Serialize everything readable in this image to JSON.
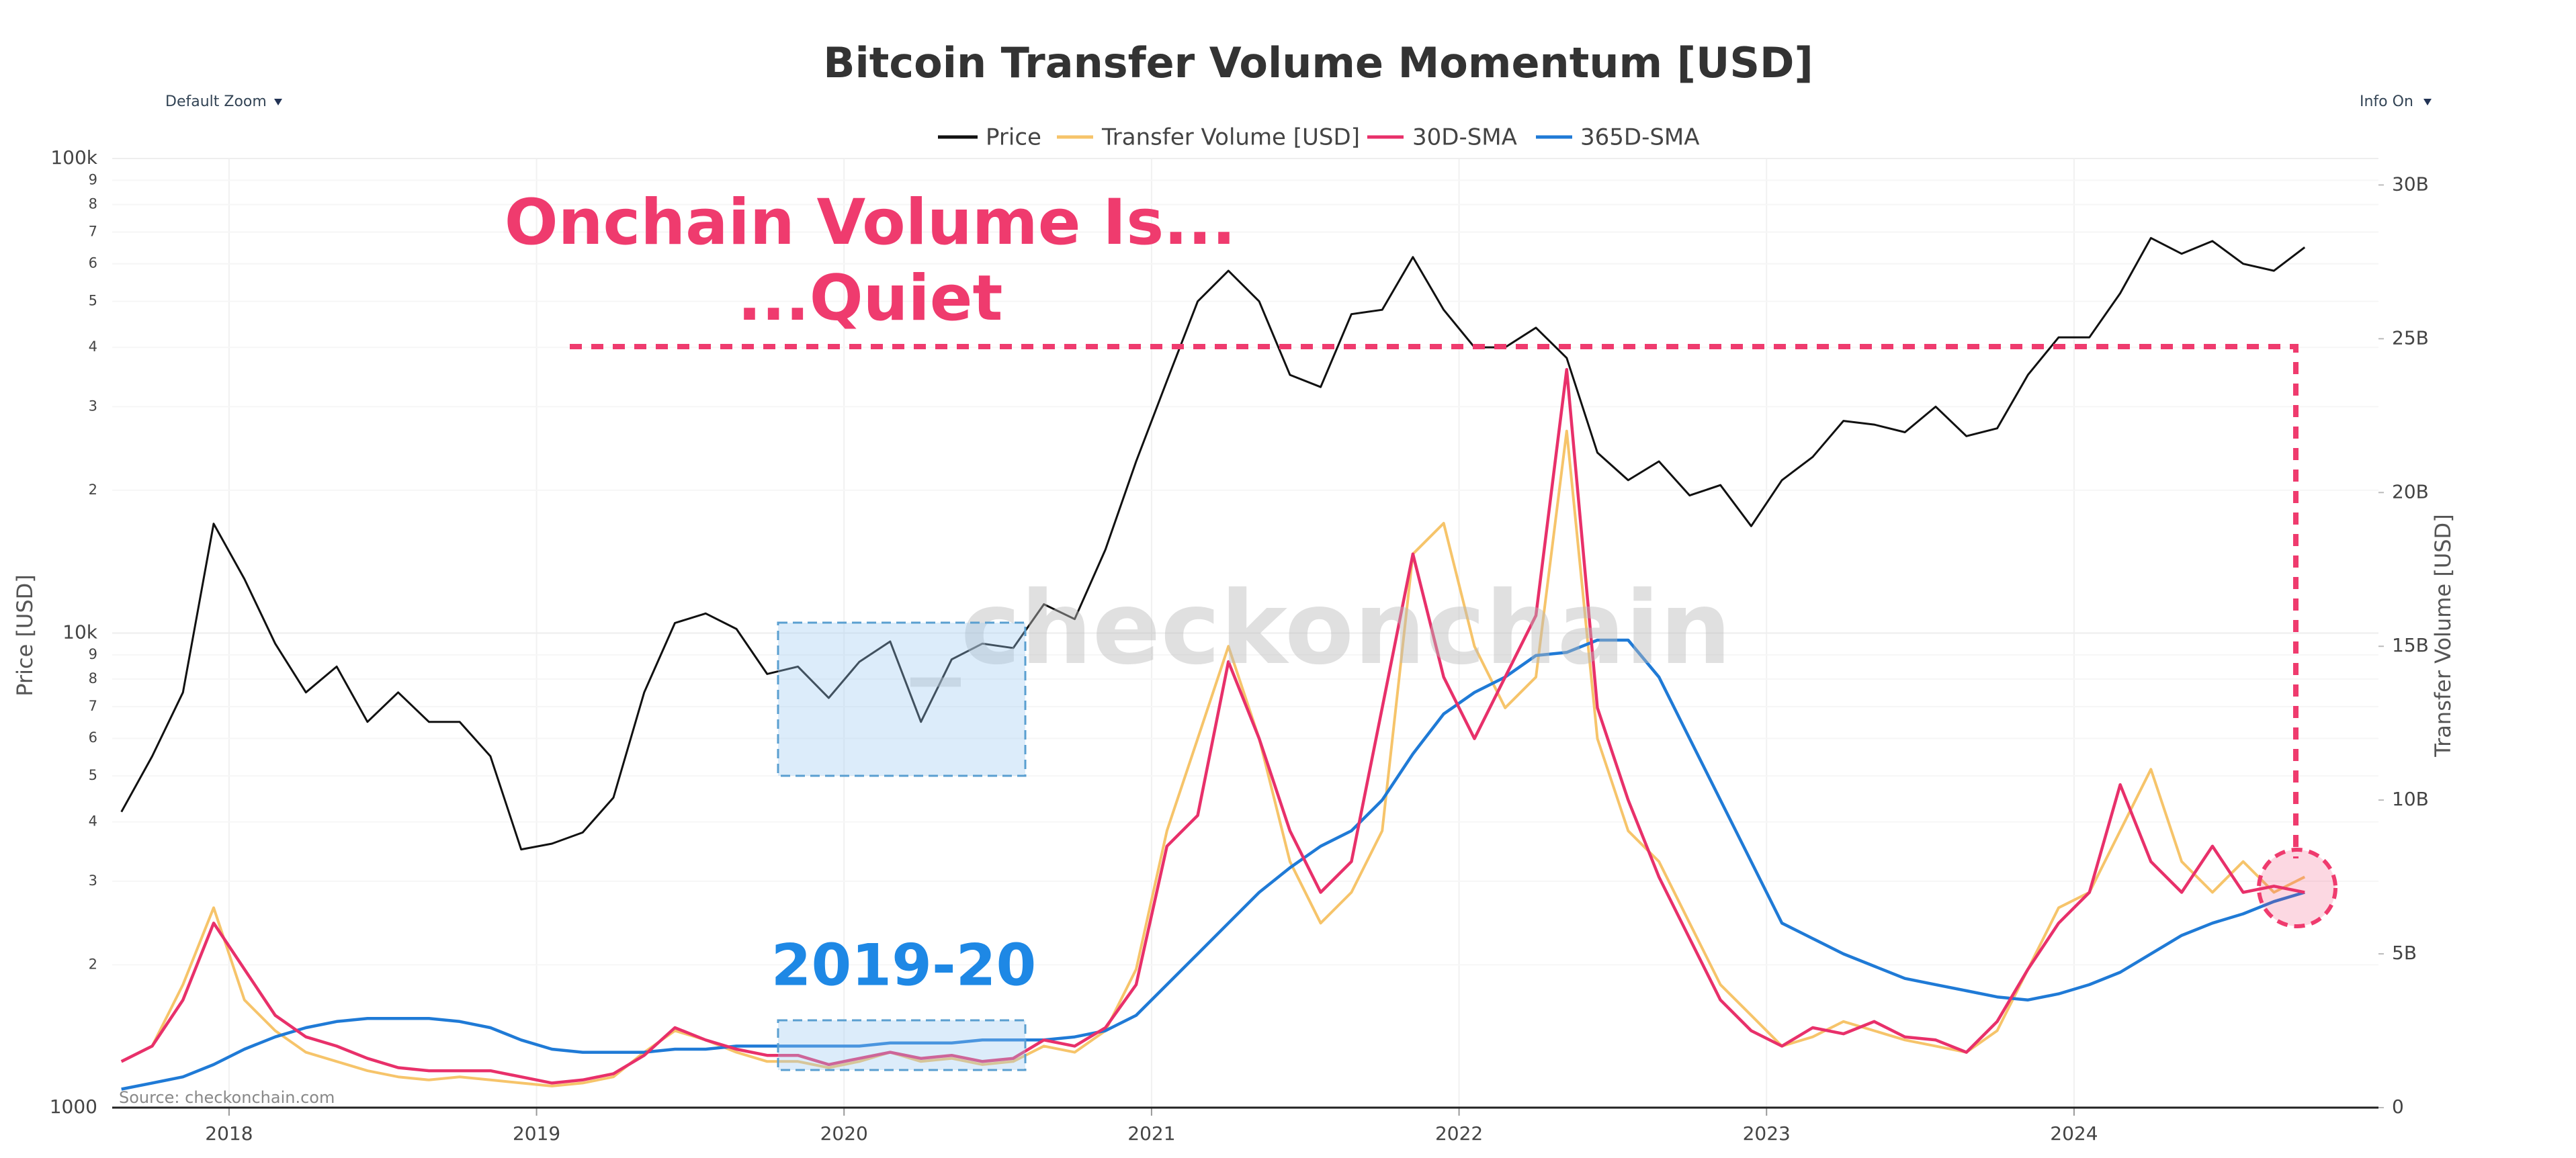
{
  "controls": {
    "zoom": "Default Zoom",
    "info": "Info On"
  },
  "chart_data": {
    "type": "line",
    "title": "Bitcoin Transfer Volume Momentum [USD]",
    "y_label": "Price [USD]",
    "y2_label": "Transfer Volume [USD]",
    "annotations": [
      "Onchain Volume Is...",
      "...Quiet",
      "2019-20"
    ],
    "watermark": "_checkonchain",
    "source": "Source: checkonchain.com",
    "yscale": "log",
    "grid": true,
    "xlim": [
      2017.62,
      2024.99
    ],
    "xticks": [
      2018,
      2019,
      2020,
      2021,
      2022,
      2023,
      2024
    ],
    "ylim": [
      1000,
      100000
    ],
    "yticks": [
      1000,
      {
        "value": 2000,
        "label": "2"
      },
      {
        "value": 3000,
        "label": "3"
      },
      {
        "value": 4000,
        "label": "4"
      },
      {
        "value": 5000,
        "label": "5"
      },
      {
        "value": 6000,
        "label": "6"
      },
      {
        "value": 7000,
        "label": "7"
      },
      {
        "value": 8000,
        "label": "8"
      },
      {
        "value": 9000,
        "label": "9"
      },
      {
        "value": 10000,
        "label": "10k"
      },
      {
        "value": 20000,
        "label": "2"
      },
      {
        "value": 30000,
        "label": "3"
      },
      {
        "value": 40000,
        "label": "4"
      },
      {
        "value": 50000,
        "label": "5"
      },
      {
        "value": 60000,
        "label": "6"
      },
      {
        "value": 70000,
        "label": "7"
      },
      {
        "value": 80000,
        "label": "8"
      },
      {
        "value": 90000,
        "label": "9"
      },
      {
        "value": 100000,
        "label": "100k"
      }
    ],
    "y2lim": [
      0,
      30860000000
    ],
    "y2ticks": [
      0,
      {
        "value": 5000000000,
        "label": "5B"
      },
      {
        "value": 10000000000,
        "label": "10B"
      },
      {
        "value": 15000000000,
        "label": "15B"
      },
      {
        "value": 20000000000,
        "label": "20B"
      },
      {
        "value": 25000000000,
        "label": "25B"
      },
      {
        "value": 30000000000,
        "label": "30B"
      }
    ],
    "x": [
      2017.65,
      2017.75,
      2017.85,
      2017.95,
      2018.05,
      2018.15,
      2018.25,
      2018.35,
      2018.45,
      2018.55,
      2018.65,
      2018.75,
      2018.85,
      2018.95,
      2019.05,
      2019.15,
      2019.25,
      2019.35,
      2019.45,
      2019.55,
      2019.65,
      2019.75,
      2019.85,
      2019.95,
      2020.05,
      2020.15,
      2020.25,
      2020.35,
      2020.45,
      2020.55,
      2020.65,
      2020.75,
      2020.85,
      2020.95,
      2021.05,
      2021.15,
      2021.25,
      2021.35,
      2021.45,
      2021.55,
      2021.65,
      2021.75,
      2021.85,
      2021.95,
      2022.05,
      2022.15,
      2022.25,
      2022.35,
      2022.45,
      2022.55,
      2022.65,
      2022.75,
      2022.85,
      2022.95,
      2023.05,
      2023.15,
      2023.25,
      2023.35,
      2023.45,
      2023.55,
      2023.65,
      2023.75,
      2023.85,
      2023.95,
      2024.05,
      2024.15,
      2024.25,
      2024.35,
      2024.45,
      2024.55,
      2024.65,
      2024.75
    ],
    "series": [
      {
        "name": "Price",
        "color": "#111111",
        "axis": "y",
        "values": [
          4200,
          5500,
          7500,
          17000,
          13000,
          9500,
          7500,
          8500,
          6500,
          7500,
          6500,
          6500,
          5500,
          3500,
          3600,
          3800,
          4500,
          7500,
          10500,
          11000,
          10200,
          8200,
          8500,
          7300,
          8700,
          9600,
          6500,
          8800,
          9500,
          9300,
          11500,
          10700,
          15000,
          23000,
          34000,
          50000,
          58000,
          50000,
          35000,
          33000,
          47000,
          48000,
          62000,
          48000,
          40000,
          40000,
          44000,
          38000,
          24000,
          21000,
          23000,
          19500,
          20500,
          16800,
          21000,
          23500,
          28000,
          27500,
          26500,
          30000,
          26000,
          27000,
          35000,
          42000,
          42000,
          52000,
          68000,
          63000,
          67000,
          60000,
          58000,
          65000
        ]
      },
      {
        "name": "Transfer Volume [USD]",
        "color": "#f6c46a",
        "axis": "y2",
        "values": [
          1500000000.0,
          2000000000.0,
          4000000000.0,
          6500000000.0,
          3500000000.0,
          2500000000.0,
          1800000000.0,
          1500000000.0,
          1200000000.0,
          1000000000.0,
          900000000.0,
          1000000000.0,
          900000000.0,
          800000000.0,
          700000000.0,
          800000000.0,
          1000000000.0,
          1800000000.0,
          2500000000.0,
          2200000000.0,
          1800000000.0,
          1500000000.0,
          1500000000.0,
          1300000000.0,
          1500000000.0,
          1800000000.0,
          1500000000.0,
          1600000000.0,
          1400000000.0,
          1500000000.0,
          2000000000.0,
          1800000000.0,
          2500000000.0,
          4500000000.0,
          9000000000.0,
          12000000000.0,
          15000000000.0,
          12000000000.0,
          8000000000.0,
          6000000000.0,
          7000000000.0,
          9000000000.0,
          18000000000.0,
          19000000000.0,
          15000000000.0,
          13000000000.0,
          14000000000.0,
          22000000000.0,
          12000000000.0,
          9000000000.0,
          8000000000.0,
          6000000000.0,
          4000000000.0,
          3000000000.0,
          2000000000.0,
          2300000000.0,
          2800000000.0,
          2500000000.0,
          2200000000.0,
          2000000000.0,
          1800000000.0,
          2500000000.0,
          4500000000.0,
          6500000000.0,
          7000000000.0,
          9000000000.0,
          11000000000.0,
          8000000000.0,
          7000000000.0,
          8000000000.0,
          7000000000.0,
          7500000000.0
        ]
      },
      {
        "name": "30D-SMA",
        "color": "#e8306a",
        "axis": "y2",
        "values": [
          1500000000.0,
          2000000000.0,
          3500000000.0,
          6000000000.0,
          4500000000.0,
          3000000000.0,
          2300000000.0,
          2000000000.0,
          1600000000.0,
          1300000000.0,
          1200000000.0,
          1200000000.0,
          1200000000.0,
          1000000000.0,
          800000000.0,
          900000000.0,
          1100000000.0,
          1700000000.0,
          2600000000.0,
          2200000000.0,
          1900000000.0,
          1700000000.0,
          1700000000.0,
          1400000000.0,
          1600000000.0,
          1800000000.0,
          1600000000.0,
          1700000000.0,
          1500000000.0,
          1600000000.0,
          2200000000.0,
          2000000000.0,
          2600000000.0,
          4000000000.0,
          8500000000.0,
          9500000000.0,
          14500000000.0,
          12000000000.0,
          9000000000.0,
          7000000000.0,
          8000000000.0,
          13000000000.0,
          18000000000.0,
          14000000000.0,
          12000000000.0,
          14000000000.0,
          16000000000.0,
          24000000000.0,
          13000000000.0,
          10000000000.0,
          7500000000.0,
          5500000000.0,
          3500000000.0,
          2500000000.0,
          2000000000.0,
          2600000000.0,
          2400000000.0,
          2800000000.0,
          2300000000.0,
          2200000000.0,
          1800000000.0,
          2800000000.0,
          4500000000.0,
          6000000000.0,
          7000000000.0,
          10500000000.0,
          8000000000.0,
          7000000000.0,
          8500000000.0,
          7000000000.0,
          7200000000.0,
          7000000000.0
        ]
      },
      {
        "name": "365D-SMA",
        "color": "#1f7ad6",
        "axis": "y2",
        "values": [
          600000000.0,
          800000000.0,
          1000000000.0,
          1400000000.0,
          1900000000.0,
          2300000000.0,
          2600000000.0,
          2800000000.0,
          2900000000.0,
          2900000000.0,
          2900000000.0,
          2800000000.0,
          2600000000.0,
          2200000000.0,
          1900000000.0,
          1800000000.0,
          1800000000.0,
          1800000000.0,
          1900000000.0,
          1900000000.0,
          2000000000.0,
          2000000000.0,
          2000000000.0,
          2000000000.0,
          2000000000.0,
          2100000000.0,
          2100000000.0,
          2100000000.0,
          2200000000.0,
          2200000000.0,
          2200000000.0,
          2300000000.0,
          2500000000.0,
          3000000000.0,
          4000000000.0,
          5000000000.0,
          6000000000.0,
          7000000000.0,
          7800000000.0,
          8500000000.0,
          9000000000.0,
          10000000000.0,
          11500000000.0,
          12800000000.0,
          13500000000.0,
          14000000000.0,
          14700000000.0,
          14800000000.0,
          15200000000.0,
          15200000000.0,
          14000000000.0,
          12000000000.0,
          10000000000.0,
          8000000000.0,
          6000000000.0,
          5500000000.0,
          5000000000.0,
          4600000000.0,
          4200000000.0,
          4000000000.0,
          3800000000.0,
          3600000000.0,
          3500000000.0,
          3700000000.0,
          4000000000.0,
          4400000000.0,
          5000000000.0,
          5600000000.0,
          6000000000.0,
          6300000000.0,
          6700000000.0,
          7000000000.0
        ]
      }
    ]
  }
}
